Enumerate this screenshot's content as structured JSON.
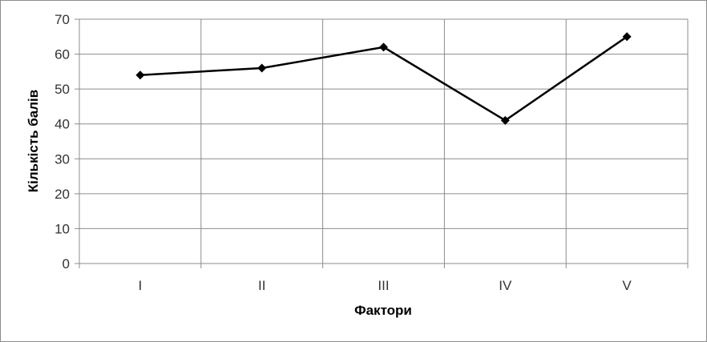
{
  "chart_data": {
    "type": "line",
    "categories": [
      "I",
      "II",
      "III",
      "IV",
      "V"
    ],
    "series": [
      {
        "values": [
          54,
          56,
          62,
          41,
          65
        ]
      }
    ],
    "xlabel": "Фактори",
    "ylabel": "Кількість балів",
    "ylim": [
      0,
      70
    ],
    "yticks": [
      "0",
      "10",
      "20",
      "30",
      "40",
      "50",
      "60",
      "70"
    ],
    "grid": true,
    "legend": "none",
    "line_color": "#000000",
    "marker": "diamond"
  }
}
